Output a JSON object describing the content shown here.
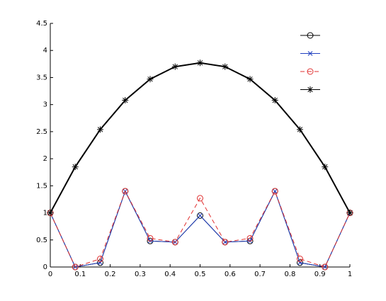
{
  "chart_data": {
    "type": "line",
    "x": [
      0,
      0.0833,
      0.1667,
      0.25,
      0.3333,
      0.4167,
      0.5,
      0.5833,
      0.6667,
      0.75,
      0.8333,
      0.9167,
      1
    ],
    "series": [
      {
        "color": "#000000",
        "marker": "o",
        "linestyle": "solid",
        "values": [
          1,
          0,
          0.08,
          1.4,
          0.48,
          0.46,
          0.95,
          0.46,
          0.48,
          1.4,
          0.08,
          0,
          1
        ]
      },
      {
        "color": "#2040c0",
        "marker": "x",
        "linestyle": "solid",
        "values": [
          1,
          0,
          0.08,
          1.4,
          0.48,
          0.46,
          0.95,
          0.46,
          0.48,
          1.4,
          0.08,
          0,
          1
        ]
      },
      {
        "color": "#e03030",
        "marker": "o",
        "linestyle": "dashed",
        "values": [
          1,
          0,
          0.15,
          1.4,
          0.53,
          0.46,
          1.27,
          0.46,
          0.53,
          1.4,
          0.15,
          0,
          1
        ]
      },
      {
        "color": "#000000",
        "marker": "*",
        "linestyle": "solid",
        "width": 2,
        "values": [
          1,
          1.85,
          2.54,
          3.08,
          3.47,
          3.7,
          3.77,
          3.7,
          3.47,
          3.08,
          2.54,
          1.85,
          1
        ]
      }
    ],
    "xlim": [
      0,
      1
    ],
    "ylim": [
      0,
      4.5
    ],
    "xticks": [
      0,
      0.1,
      0.2,
      0.3,
      0.4,
      0.5,
      0.6,
      0.7,
      0.8,
      0.9,
      1
    ],
    "yticks": [
      0,
      0.5,
      1,
      1.5,
      2,
      2.5,
      3,
      3.5,
      4,
      4.5
    ],
    "legend": "upper right"
  }
}
